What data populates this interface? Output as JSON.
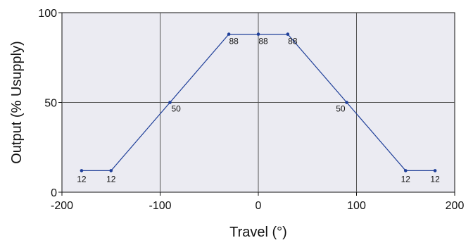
{
  "chart_data": {
    "type": "line",
    "title": "",
    "xlabel": "Travel (°)",
    "ylabel": "Output (% Usupply)",
    "xlim": [
      -200,
      200
    ],
    "ylim": [
      0,
      100
    ],
    "x_ticks": [
      -200,
      -100,
      0,
      100,
      200
    ],
    "y_ticks": [
      0,
      50,
      100
    ],
    "x_tick_labels": [
      "-200",
      "-100",
      "0",
      "100",
      "200"
    ],
    "y_tick_labels": [
      "0",
      "50",
      "100"
    ],
    "grid": true,
    "series": [
      {
        "points": [
          {
            "x": -180,
            "y": 12,
            "label": "12"
          },
          {
            "x": -150,
            "y": 12,
            "label": "12"
          },
          {
            "x": -90,
            "y": 50,
            "label": "50"
          },
          {
            "x": -30,
            "y": 88,
            "label": "88"
          },
          {
            "x": 0,
            "y": 88,
            "label": "88"
          },
          {
            "x": 30,
            "y": 88,
            "label": "88"
          },
          {
            "x": 90,
            "y": 50,
            "label": "50"
          },
          {
            "x": 150,
            "y": 12,
            "label": "12"
          },
          {
            "x": 180,
            "y": 12,
            "label": "12"
          }
        ]
      }
    ],
    "colors": {
      "plot_background": "#ebebf2",
      "grid": "#555555",
      "series_line": "#1f3f99",
      "axis": "#111111"
    }
  }
}
